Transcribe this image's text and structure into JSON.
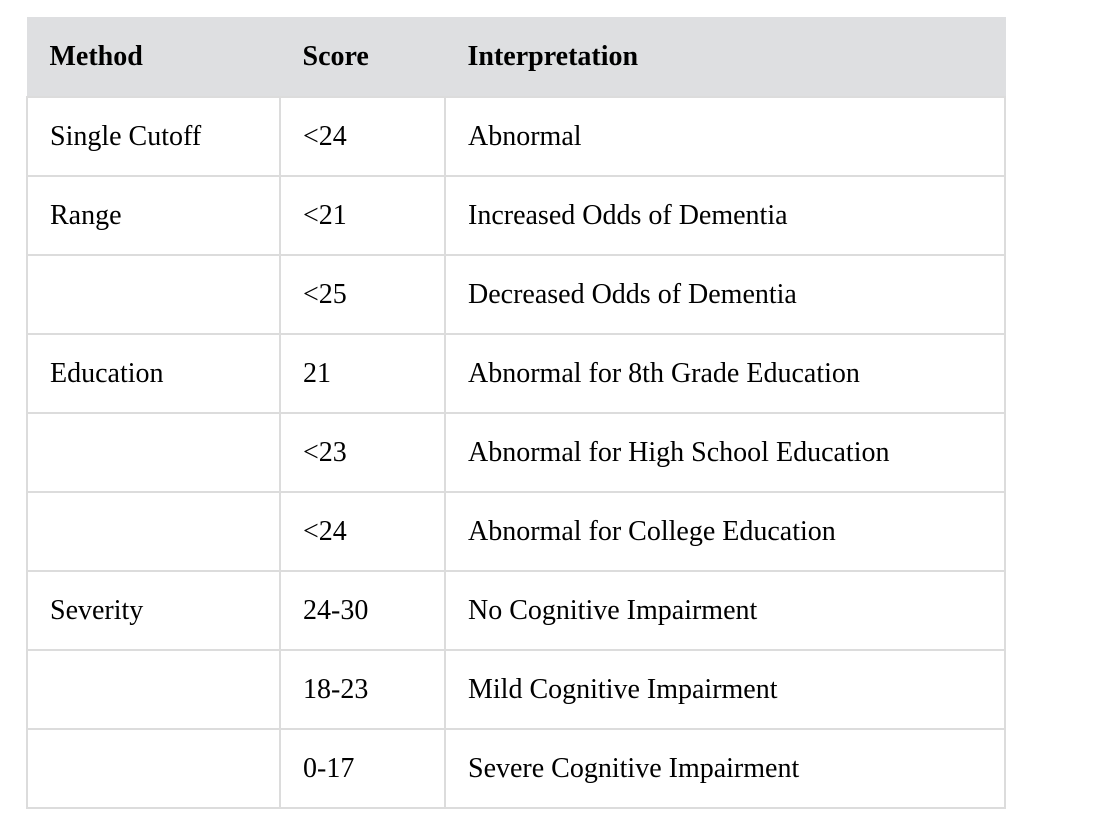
{
  "table": {
    "headers": [
      "Method",
      "Score",
      "Interpretation"
    ],
    "rows": [
      [
        "Single Cutoff",
        "<24",
        "Abnormal"
      ],
      [
        "Range",
        "<21",
        "Increased Odds of Dementia"
      ],
      [
        "",
        "<25",
        "Decreased Odds of Dementia"
      ],
      [
        "Education",
        "21",
        "Abnormal for 8th Grade Education"
      ],
      [
        "",
        "<23",
        "Abnormal for High School Education"
      ],
      [
        "",
        "<24",
        "Abnormal for College Education"
      ],
      [
        "Severity",
        "24-30",
        "No Cognitive Impairment"
      ],
      [
        "",
        "18-23",
        "Mild Cognitive Impairment"
      ],
      [
        "",
        "0-17",
        "Severe Cognitive Impairment"
      ]
    ]
  }
}
